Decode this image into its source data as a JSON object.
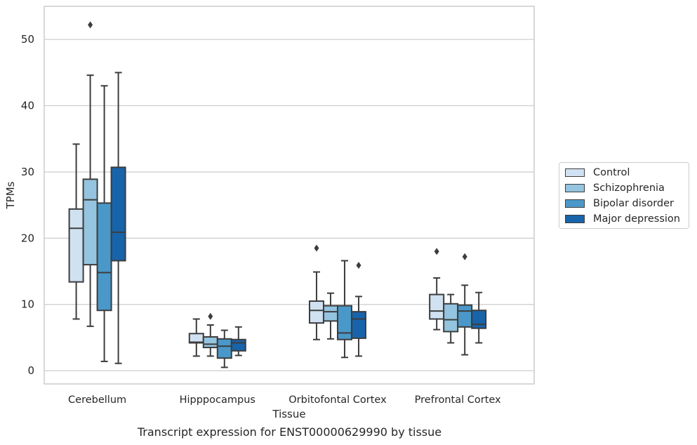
{
  "caption": "Transcript expression for ENST00000629990 by tissue",
  "legend": {
    "items": [
      {
        "label": "Control",
        "color": "#d0e1f2"
      },
      {
        "label": "Schizophrenia",
        "color": "#94c4df"
      },
      {
        "label": "Bipolar disorder",
        "color": "#4a98c9"
      },
      {
        "label": "Major depression",
        "color": "#1764ab"
      }
    ]
  },
  "chart_data": {
    "type": "box",
    "title": "",
    "xlabel": "Tissue",
    "ylabel": "TPMs",
    "ylim": [
      -2,
      55
    ],
    "yticks": [
      0,
      10,
      20,
      30,
      40,
      50
    ],
    "grid": "horizontal",
    "legend_placement": "right",
    "categories": [
      "Cerebellum",
      "Hipppocampus",
      "Orbitofontal Cortex",
      "Prefrontal Cortex"
    ],
    "series": [
      {
        "name": "Control",
        "color": "#d0e1f2",
        "boxes": [
          {
            "whislo": 7.8,
            "q1": 13.4,
            "med": 21.5,
            "q3": 24.4,
            "whishi": 34.2,
            "fliers": []
          },
          {
            "whislo": 2.2,
            "q1": 4.2,
            "med": 4.3,
            "q3": 5.6,
            "whishi": 7.8,
            "fliers": []
          },
          {
            "whislo": 4.7,
            "q1": 7.2,
            "med": 9.1,
            "q3": 10.5,
            "whishi": 14.9,
            "fliers": [
              18.5
            ]
          },
          {
            "whislo": 6.2,
            "q1": 7.8,
            "med": 9.0,
            "q3": 11.5,
            "whishi": 14.0,
            "fliers": [
              18.0
            ]
          }
        ]
      },
      {
        "name": "Schizophrenia",
        "color": "#94c4df",
        "boxes": [
          {
            "whislo": 6.7,
            "q1": 16.0,
            "med": 25.8,
            "q3": 28.9,
            "whishi": 44.6,
            "fliers": [
              52.2
            ]
          },
          {
            "whislo": 2.2,
            "q1": 3.5,
            "med": 4.0,
            "q3": 5.1,
            "whishi": 6.9,
            "fliers": [
              8.2
            ]
          },
          {
            "whislo": 4.8,
            "q1": 7.5,
            "med": 8.9,
            "q3": 9.8,
            "whishi": 11.7,
            "fliers": []
          },
          {
            "whislo": 4.2,
            "q1": 5.9,
            "med": 7.7,
            "q3": 10.1,
            "whishi": 11.5,
            "fliers": []
          }
        ]
      },
      {
        "name": "Bipolar disorder",
        "color": "#4a98c9",
        "boxes": [
          {
            "whislo": 1.4,
            "q1": 9.1,
            "med": 14.8,
            "q3": 25.3,
            "whishi": 43.0,
            "fliers": []
          },
          {
            "whislo": 0.5,
            "q1": 1.9,
            "med": 3.7,
            "q3": 4.8,
            "whishi": 6.1,
            "fliers": []
          },
          {
            "whislo": 2.0,
            "q1": 4.7,
            "med": 5.7,
            "q3": 9.8,
            "whishi": 16.6,
            "fliers": []
          },
          {
            "whislo": 2.4,
            "q1": 6.6,
            "med": 9.0,
            "q3": 9.9,
            "whishi": 12.9,
            "fliers": [
              17.2
            ]
          }
        ]
      },
      {
        "name": "Major depression",
        "color": "#1764ab",
        "boxes": [
          {
            "whislo": 1.1,
            "q1": 16.6,
            "med": 20.9,
            "q3": 30.7,
            "whishi": 45.0,
            "fliers": []
          },
          {
            "whislo": 2.3,
            "q1": 3.0,
            "med": 4.2,
            "q3": 4.7,
            "whishi": 6.6,
            "fliers": []
          },
          {
            "whislo": 2.2,
            "q1": 4.9,
            "med": 7.8,
            "q3": 8.9,
            "whishi": 11.2,
            "fliers": [
              15.9
            ]
          },
          {
            "whislo": 4.2,
            "q1": 6.4,
            "med": 7.0,
            "q3": 9.1,
            "whishi": 11.8,
            "fliers": []
          }
        ]
      }
    ]
  }
}
